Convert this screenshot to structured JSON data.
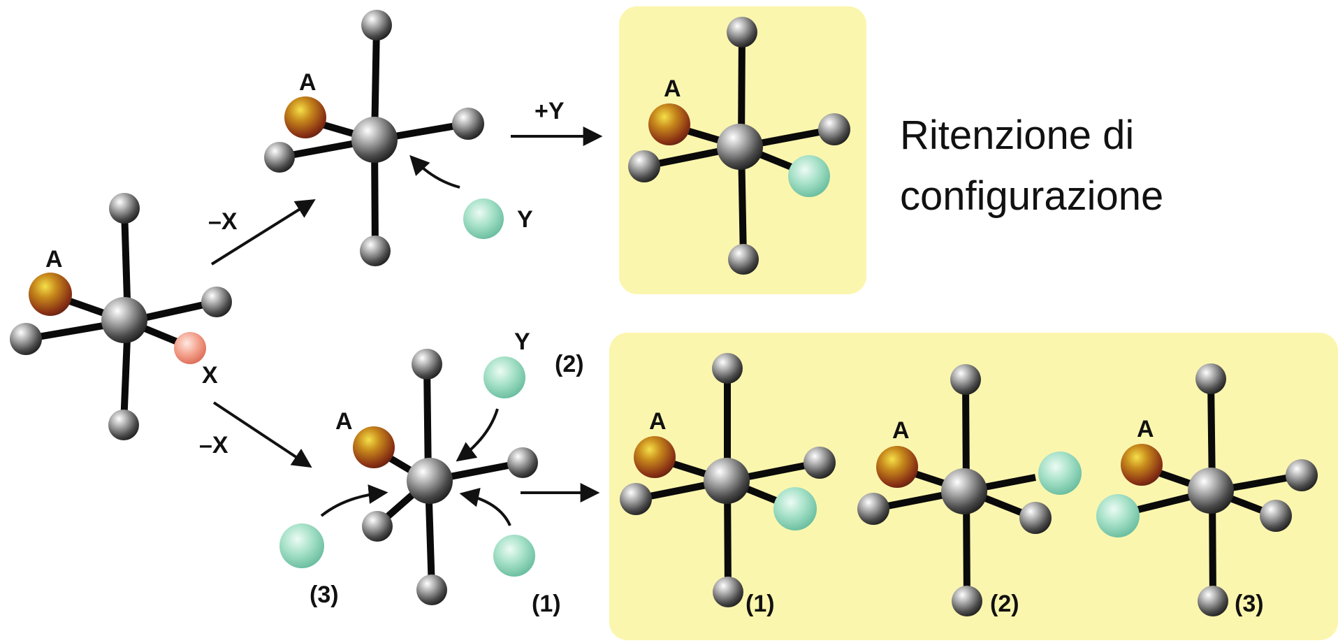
{
  "colors": {
    "highlight_box": "#fbf6ae",
    "bond": "#0a0a0a",
    "metal_atom": "gray",
    "ligand_A": "orange-brown",
    "ligand_X": "salmon",
    "ligand_Y": "mint-green",
    "arrow": "#111111"
  },
  "start": {
    "label_A": "A",
    "label_X": "X"
  },
  "upper_path": {
    "arrow_label_leaving": "–X",
    "intermediate_label_A": "A",
    "incoming_label_Y": "Y",
    "arrow_label_entering": "+Y",
    "product_label_A": "A",
    "caption_line1": "Ritenzione di",
    "caption_line2": "configurazione"
  },
  "lower_path": {
    "arrow_label_leaving": "–X",
    "intermediate_label_A": "A",
    "incoming_label_Y": "Y",
    "attack_labels": [
      "(1)",
      "(2)",
      "(3)"
    ],
    "products": [
      {
        "label_A": "A",
        "label_num": "(1)"
      },
      {
        "label_A": "A",
        "label_num": "(2)"
      },
      {
        "label_A": "A",
        "label_num": "(3)"
      }
    ]
  }
}
